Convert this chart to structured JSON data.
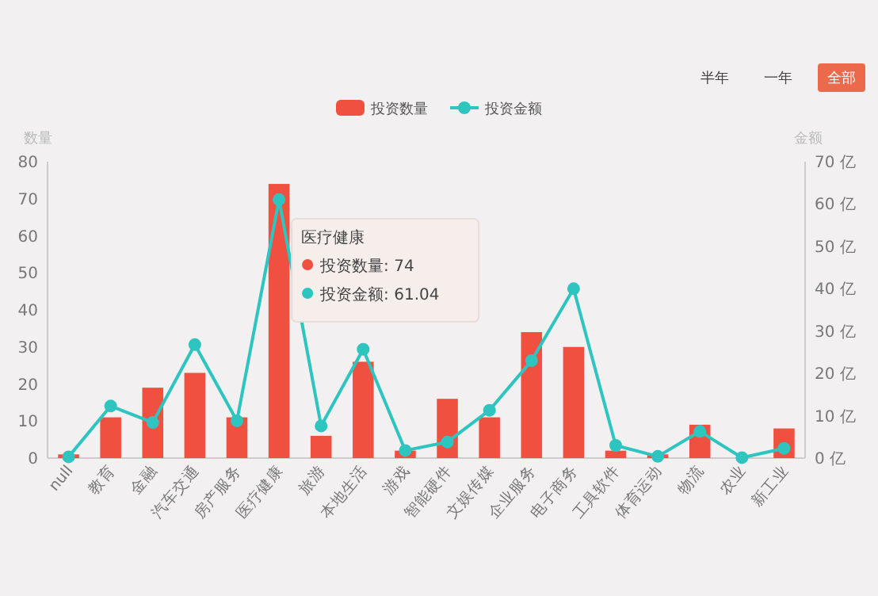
{
  "chart_data": {
    "type": "bar",
    "ylabel": "数量",
    "y2label": "金额",
    "legend": "top",
    "marker": "circle",
    "grid": false,
    "categories": [
      "null",
      "教育",
      "金融",
      "汽车交通",
      "房产服务",
      "医疗健康",
      "旅游",
      "本地生活",
      "游戏",
      "智能硬件",
      "文娱传媒",
      "企业服务",
      "电子商务",
      "工具软件",
      "体育运动",
      "物流",
      "农业",
      "新工业"
    ],
    "series": [
      {
        "name": "投资数量",
        "color": "#f0503f",
        "values": [
          1,
          11,
          19,
          23,
          11,
          74,
          6,
          26,
          2,
          16,
          11,
          34,
          30,
          2,
          1,
          9,
          0,
          8
        ]
      },
      {
        "name": "投资金额",
        "type": "line",
        "axis": "y2",
        "color": "#2ec4c0",
        "values": [
          0.3,
          12.3,
          8.4,
          26.8,
          8.8,
          61.04,
          7.6,
          25.7,
          1.8,
          3.8,
          11.3,
          23,
          40,
          3,
          0.4,
          6.3,
          0.1,
          2.3
        ]
      }
    ],
    "ylim": [
      0,
      80
    ],
    "yticks": [
      0,
      10,
      20,
      30,
      40,
      50,
      60,
      70,
      80
    ],
    "y2lim": [
      0,
      70
    ],
    "y2ticks": [
      {
        "value": 0,
        "label": "0 亿"
      },
      {
        "value": 10,
        "label": "10 亿"
      },
      {
        "value": 20,
        "label": "20 亿"
      },
      {
        "value": 30,
        "label": "30 亿"
      },
      {
        "value": 40,
        "label": "40 亿"
      },
      {
        "value": 50,
        "label": "50 亿"
      },
      {
        "value": 60,
        "label": "60 亿"
      },
      {
        "value": 70,
        "label": "70 亿"
      }
    ],
    "annotations": [
      "半年",
      "一年",
      "全部",
      {
        "text": "医疗健康",
        "x": "医疗健康"
      },
      {
        "text": "投资数量: 74",
        "x": "医疗健康"
      },
      {
        "text": "投资金额: 61.04",
        "x": "医疗健康"
      }
    ]
  }
}
